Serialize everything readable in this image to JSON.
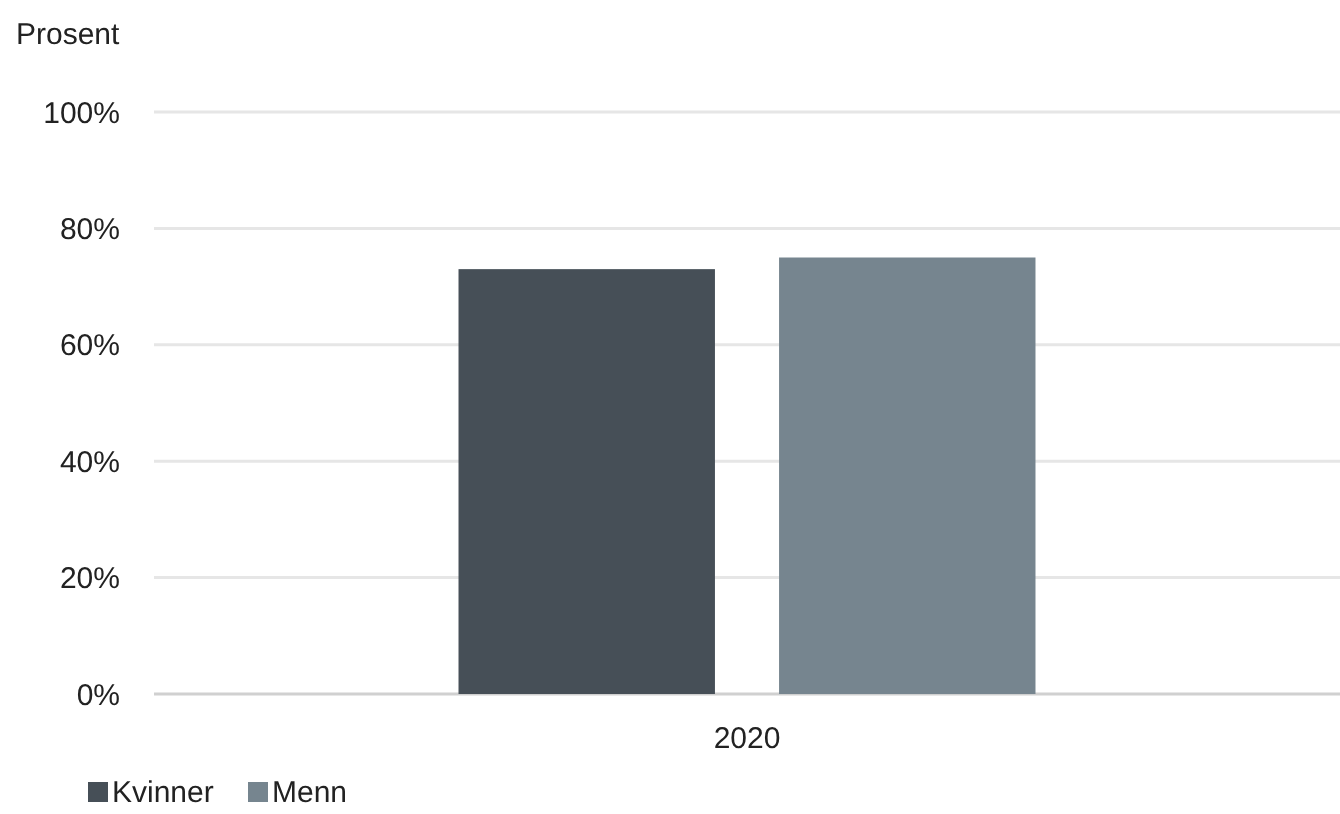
{
  "chart_data": {
    "type": "bar",
    "ylabel": "Prosent",
    "categories": [
      "2020"
    ],
    "series": [
      {
        "name": "Kvinner",
        "color": "#464f57",
        "values": [
          73
        ]
      },
      {
        "name": "Menn",
        "color": "#76858f",
        "values": [
          75
        ]
      }
    ],
    "ylim": [
      0,
      100
    ],
    "yticks": [
      {
        "value": 0,
        "label": "0%"
      },
      {
        "value": 20,
        "label": "20%"
      },
      {
        "value": 40,
        "label": "40%"
      },
      {
        "value": 60,
        "label": "60%"
      },
      {
        "value": 80,
        "label": "80%"
      },
      {
        "value": 100,
        "label": "100%"
      }
    ],
    "grid": "y",
    "legend": "bottom left"
  }
}
